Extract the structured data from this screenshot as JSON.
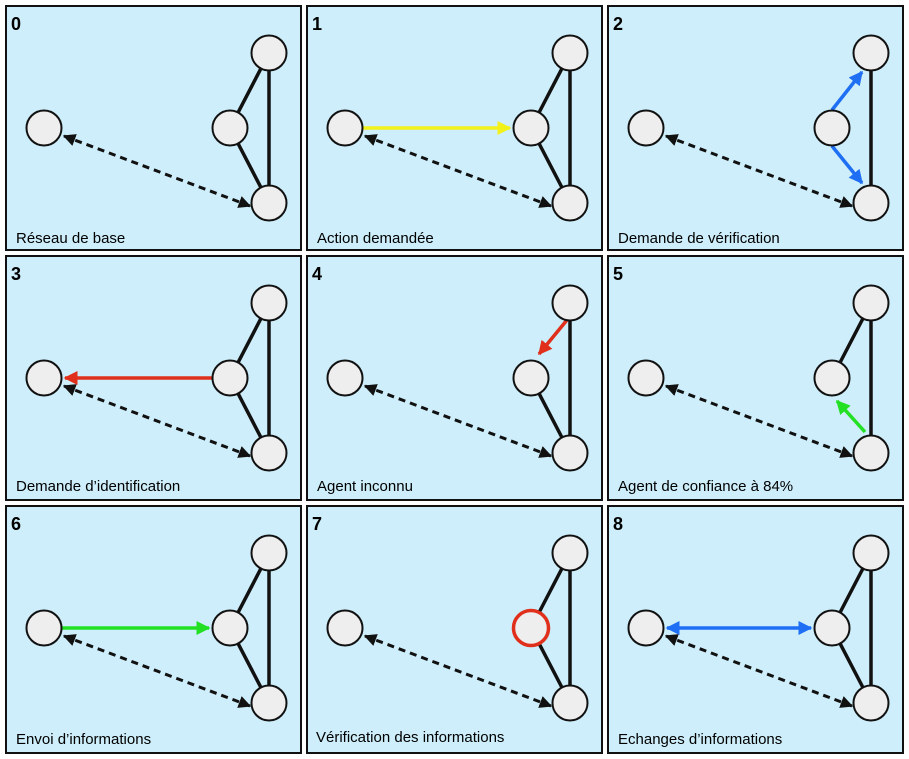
{
  "colors": {
    "panel_bg": "#cdeefa",
    "yellow": "#f2f21a",
    "blue": "#1f6ff5",
    "red": "#e0301c",
    "green": "#22e022",
    "black": "#111111"
  },
  "panels": [
    {
      "number": "0",
      "caption": "Réseau de base"
    },
    {
      "number": "1",
      "caption": "Action demandée"
    },
    {
      "number": "2",
      "caption": "Demande de vérification"
    },
    {
      "number": "3",
      "caption": "Demande d’identification"
    },
    {
      "number": "4",
      "caption": "Agent inconnu"
    },
    {
      "number": "5",
      "caption": "Agent de confiance à 84%"
    },
    {
      "number": "6",
      "caption": "Envoi d’informations"
    },
    {
      "number": "7",
      "caption": "Vérification des informations"
    },
    {
      "number": "8",
      "caption": "Echanges d’informations"
    }
  ]
}
